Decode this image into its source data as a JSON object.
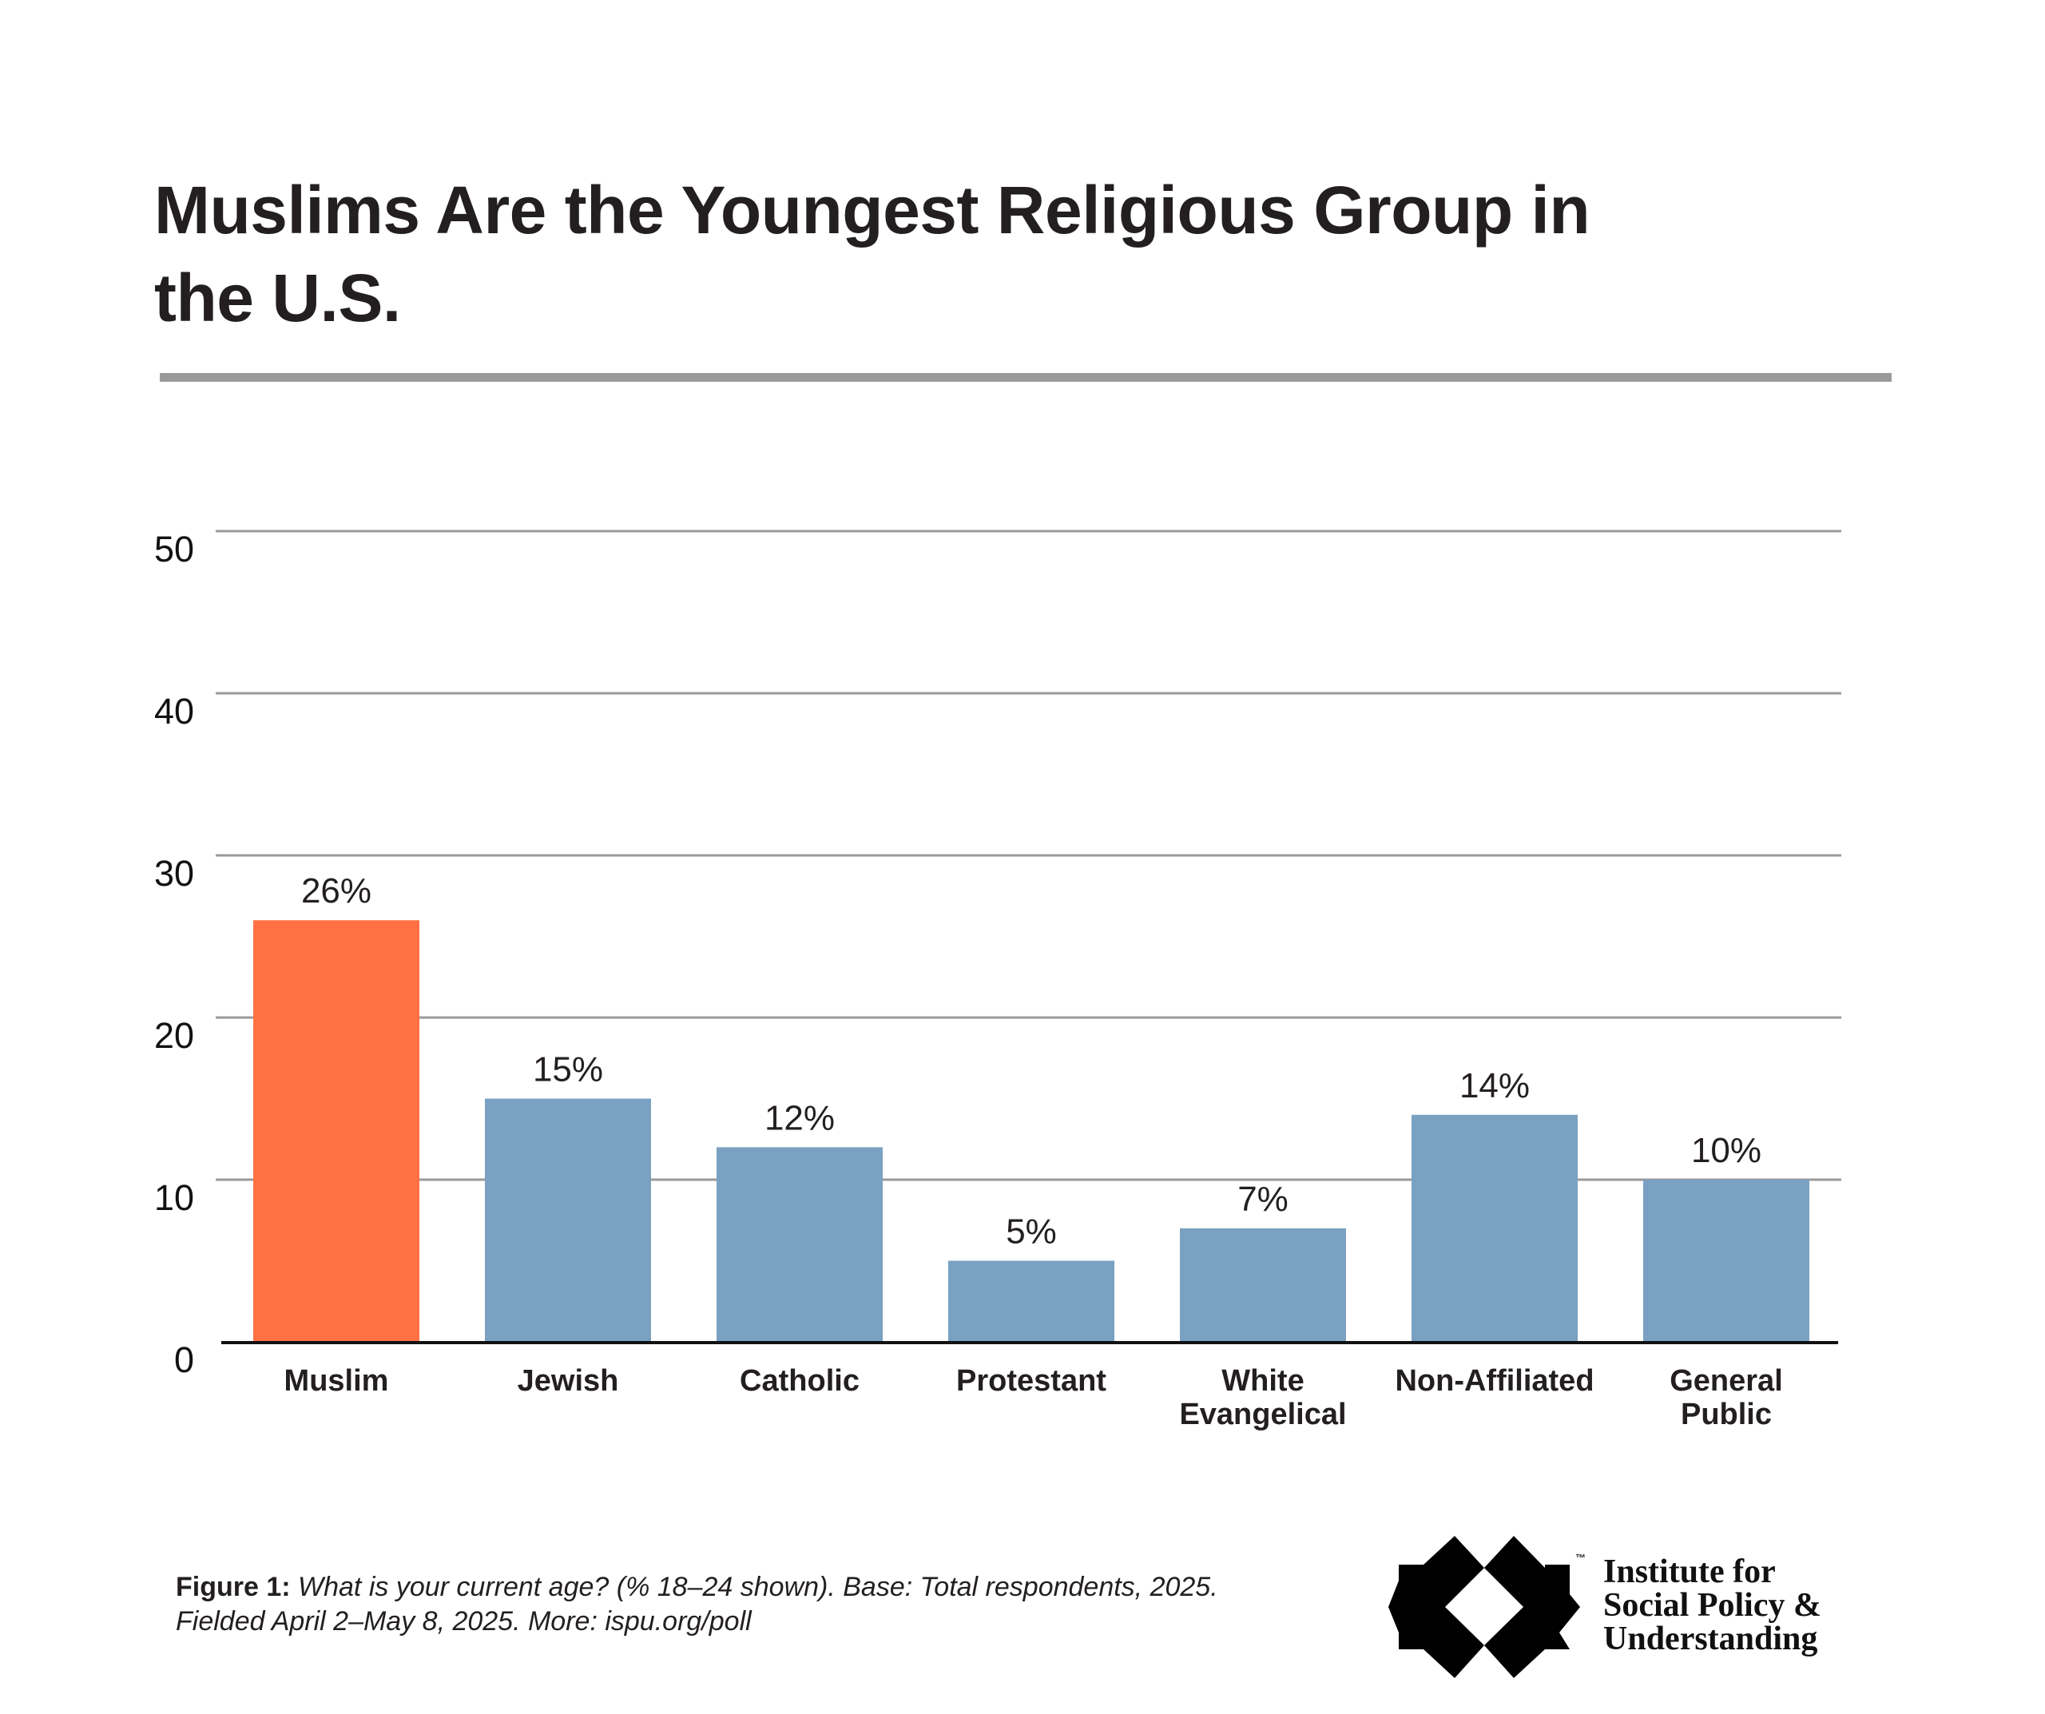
{
  "title": {
    "line1": "Muslims Are the Youngest Religious Group in",
    "line2": "the U.S."
  },
  "colors": {
    "highlight": "#ff7043",
    "bar": "#7aa1c1",
    "gridline": "#9a9a9a",
    "axis": "#111111",
    "rule": "#9a9a9a",
    "text": "#231f20"
  },
  "chart_data": {
    "type": "bar",
    "title": "Muslims Are the Youngest Religious Group in the U.S.",
    "xlabel": "",
    "ylabel": "",
    "ylim": [
      0,
      50
    ],
    "yticks": [
      0,
      10,
      20,
      30,
      40,
      50
    ],
    "grid": true,
    "categories": [
      [
        "Muslim"
      ],
      [
        "Jewish"
      ],
      [
        "Catholic"
      ],
      [
        "Protestant"
      ],
      [
        "White",
        "Evangelical"
      ],
      [
        "Non-Affiliated"
      ],
      [
        "General",
        "Public"
      ]
    ],
    "category_names": [
      "Muslim",
      "Jewish",
      "Catholic",
      "Protestant",
      "White Evangelical",
      "Non-Affiliated",
      "General Public"
    ],
    "values": [
      26,
      15,
      12,
      5,
      7,
      14,
      10
    ],
    "data_labels": [
      "26%",
      "15%",
      "12%",
      "5%",
      "7%",
      "14%",
      "10%"
    ],
    "highlight_index": 0,
    "unit": "% ages 18–24"
  },
  "caption": {
    "label": "Figure 1:",
    "line1": " What is your current age? (% 18–24 shown). Base: Total respondents, 2025.",
    "line2": "Fielded April 2–May 8, 2025. More: ispu.org/poll"
  },
  "logo": {
    "icon": "ispu-star-diamond-icon",
    "trademark": "™",
    "line1": "Institute for",
    "line2": "Social Policy &",
    "line3": "Understanding"
  }
}
